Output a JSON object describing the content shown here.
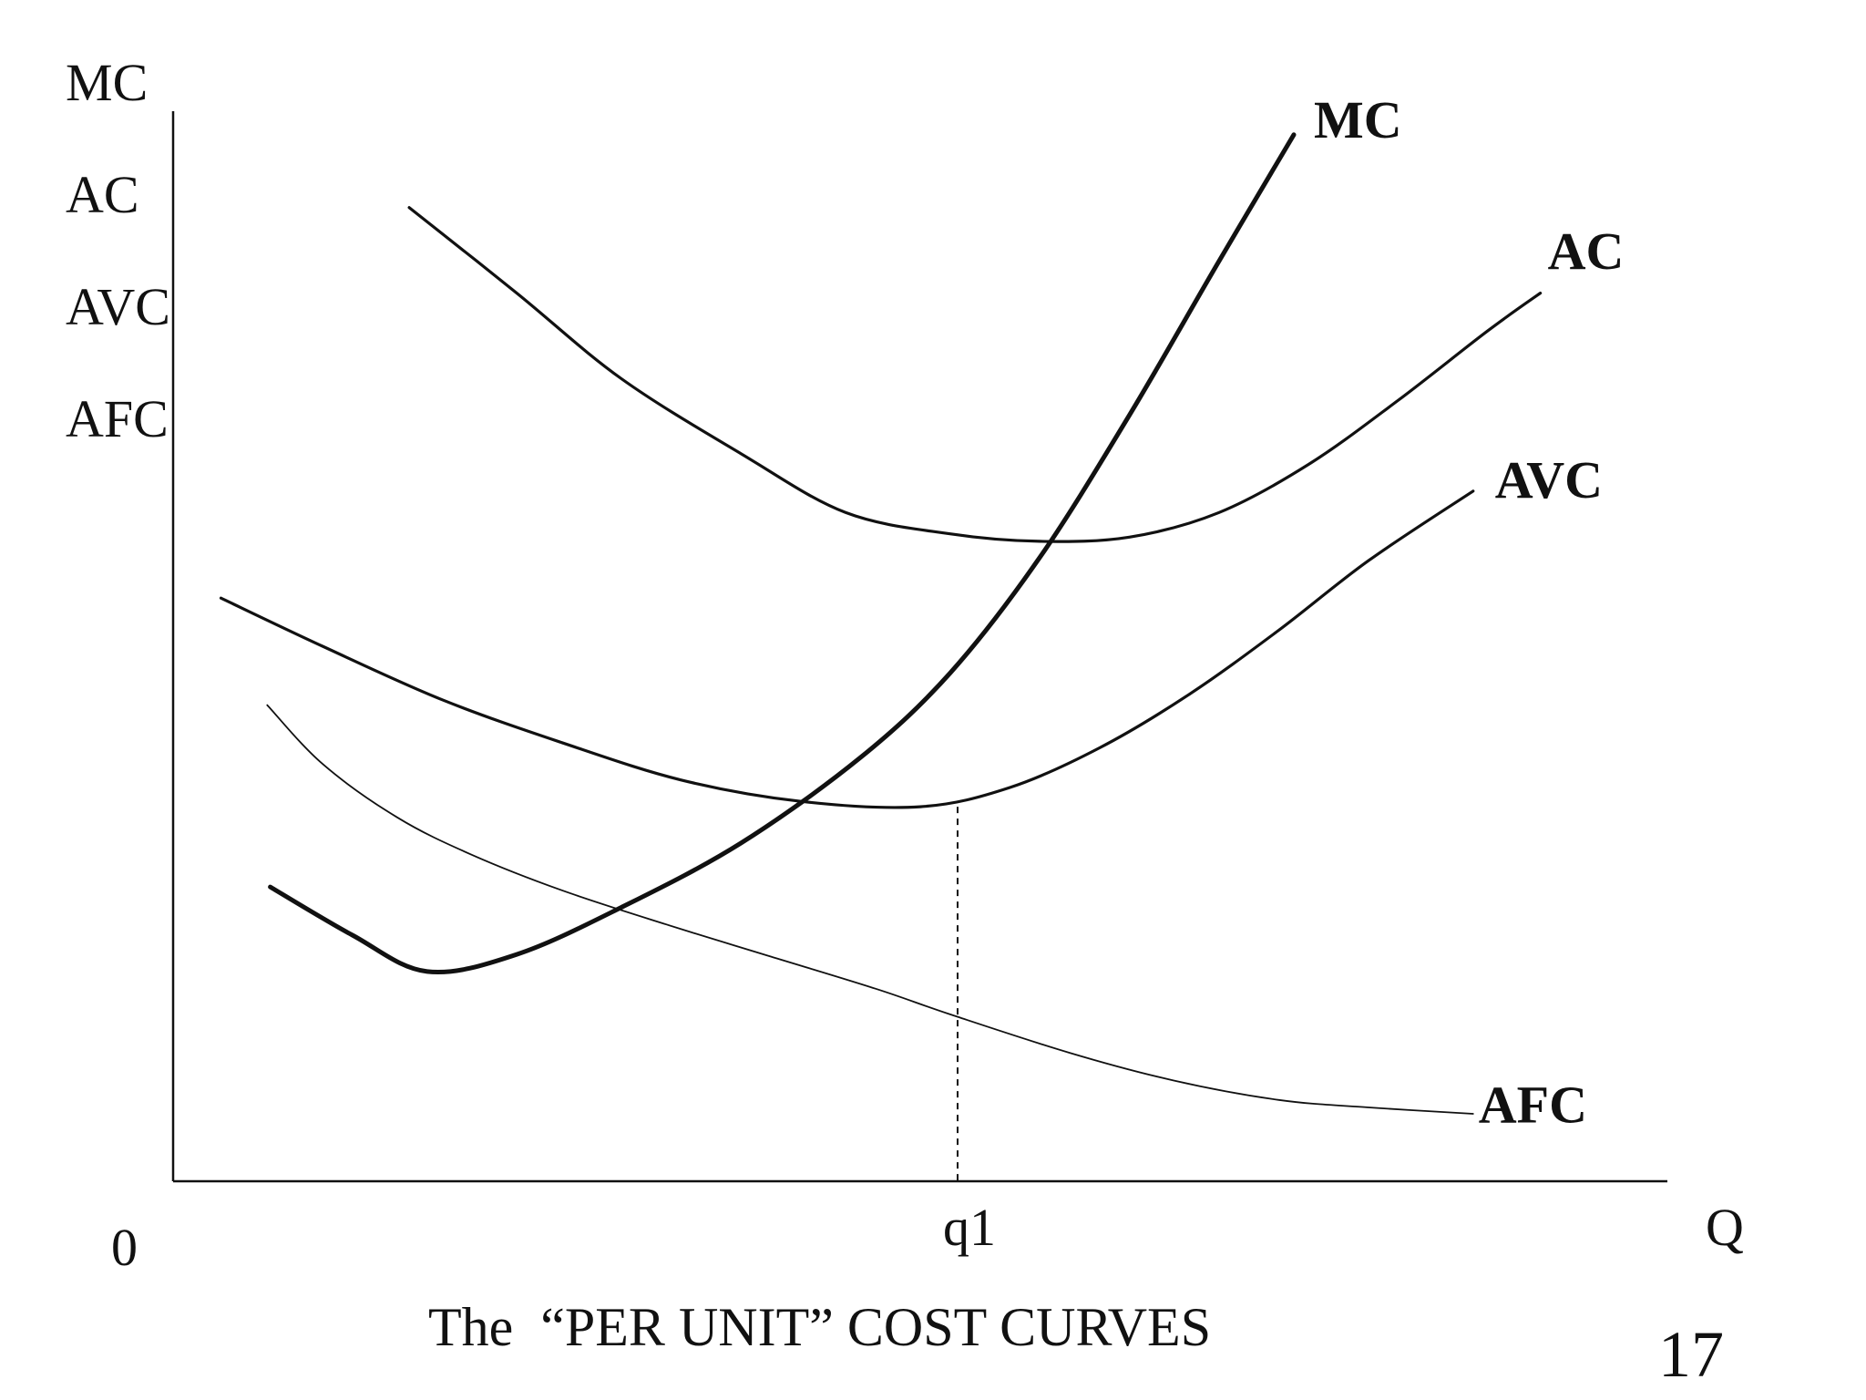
{
  "chart_data": {
    "type": "line",
    "title": "",
    "caption": "The  “PER UNIT” COST CURVES",
    "page_number": "17",
    "ylabels": [
      "MC",
      "AC",
      "AVC",
      "AFC"
    ],
    "xlabel": "Q",
    "origin_label": "0",
    "x_ticks": [
      {
        "label": "q1",
        "x": 50
      }
    ],
    "xlim": [
      0,
      100
    ],
    "ylim": [
      0,
      100
    ],
    "grid": false,
    "series": [
      {
        "name": "MC",
        "stroke": 5,
        "points": [
          [
            6.5,
            27.5
          ],
          [
            12,
            23
          ],
          [
            17,
            19.6
          ],
          [
            23,
            21.2
          ],
          [
            30,
            25.6
          ],
          [
            38,
            31.6
          ],
          [
            46,
            39.6
          ],
          [
            52,
            47.5
          ],
          [
            58,
            58.3
          ],
          [
            64,
            71.6
          ],
          [
            70,
            86
          ],
          [
            75,
            97.8
          ]
        ]
      },
      {
        "name": "AC",
        "stroke": 3.2,
        "points": [
          [
            15.8,
            91
          ],
          [
            23,
            83
          ],
          [
            30,
            75
          ],
          [
            38,
            68
          ],
          [
            45,
            62.5
          ],
          [
            52,
            60.5
          ],
          [
            58,
            59.8
          ],
          [
            64,
            60.2
          ],
          [
            70,
            62.5
          ],
          [
            76,
            67
          ],
          [
            82,
            73
          ],
          [
            88,
            79.5
          ],
          [
            91.5,
            83
          ]
        ]
      },
      {
        "name": "AVC",
        "stroke": 3.2,
        "points": [
          [
            3.2,
            54.5
          ],
          [
            10,
            50
          ],
          [
            18,
            45
          ],
          [
            26,
            41
          ],
          [
            34,
            37.5
          ],
          [
            42,
            35.5
          ],
          [
            50,
            35
          ],
          [
            56,
            36.8
          ],
          [
            62,
            40.5
          ],
          [
            68,
            45.5
          ],
          [
            74,
            51.5
          ],
          [
            80,
            58
          ],
          [
            87,
            64.5
          ]
        ]
      },
      {
        "name": "AFC",
        "stroke": 1.8,
        "points": [
          [
            6.3,
            44.5
          ],
          [
            10,
            39
          ],
          [
            15,
            34
          ],
          [
            20,
            30.5
          ],
          [
            26,
            27.2
          ],
          [
            33,
            24
          ],
          [
            40,
            21
          ],
          [
            47,
            18
          ],
          [
            52,
            15.6
          ],
          [
            60,
            12
          ],
          [
            67,
            9.4
          ],
          [
            74,
            7.6
          ],
          [
            80,
            6.9
          ],
          [
            87,
            6.3
          ]
        ]
      }
    ],
    "q1_line": {
      "x": 52.5,
      "y_top": 35
    }
  }
}
